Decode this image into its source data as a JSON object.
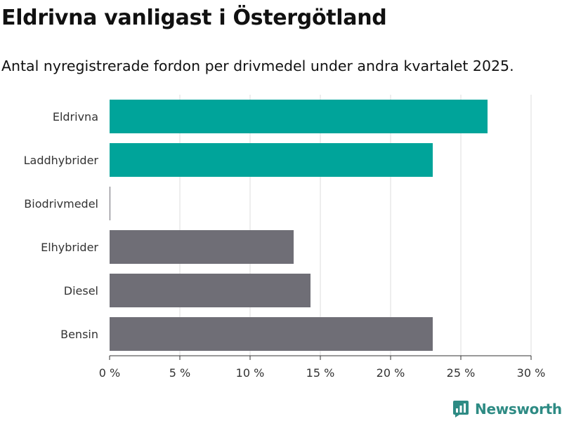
{
  "title": "Eldrivna vanligast i Östergötland",
  "subtitle": "Antal nyregistrerade fordon per drivmedel under andra kvartalet 2025.",
  "brand": {
    "name": "Newsworthy",
    "icon": "newsworthy-logo-icon"
  },
  "colors": {
    "highlight": "#00a49a",
    "other": "#6f6e76",
    "grid": "#dddddd",
    "axis": "#333333"
  },
  "chart_data": {
    "type": "bar",
    "orientation": "horizontal",
    "categories": [
      "Eldrivna",
      "Laddhybrider",
      "Biodrivmedel",
      "Elhybrider",
      "Diesel",
      "Bensin"
    ],
    "values": [
      26.9,
      23.0,
      0.05,
      13.1,
      14.3,
      23.0
    ],
    "bar_colors": [
      "highlight",
      "highlight",
      "other",
      "other",
      "other",
      "other"
    ],
    "xlim": [
      0,
      30
    ],
    "xticks": [
      {
        "value": 0,
        "label": "0 %"
      },
      {
        "value": 5,
        "label": "5 %"
      },
      {
        "value": 10,
        "label": "10 %"
      },
      {
        "value": 15,
        "label": "15 %"
      },
      {
        "value": 20,
        "label": "20 %"
      },
      {
        "value": 25,
        "label": "25 %"
      },
      {
        "value": 30,
        "label": "30 %"
      }
    ],
    "grid": true,
    "xlabel": "",
    "ylabel": ""
  }
}
